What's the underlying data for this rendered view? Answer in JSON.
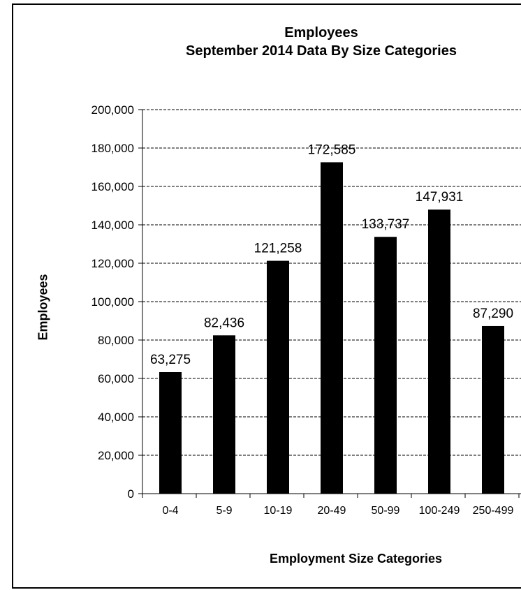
{
  "chart_data": {
    "type": "bar",
    "title": "Employees",
    "subtitle": "September 2014 Data By Size Categories",
    "xlabel": "Employment Size Categories",
    "ylabel": "Employees",
    "categories": [
      "0-4",
      "5-9",
      "10-19",
      "20-49",
      "50-99",
      "100-249",
      "250-499"
    ],
    "values": [
      63275,
      82436,
      121258,
      172585,
      133737,
      147931,
      87290
    ],
    "data_labels": [
      "63,275",
      "82,436",
      "121,258",
      "172,585",
      "133,737",
      "147,931",
      "87,290"
    ],
    "ylim": [
      0,
      200000
    ],
    "yticks": [
      0,
      20000,
      40000,
      60000,
      80000,
      100000,
      120000,
      140000,
      160000,
      180000,
      200000
    ],
    "ytick_labels": [
      "0",
      "20,000",
      "40,000",
      "60,000",
      "80,000",
      "100,000",
      "120,000",
      "140,000",
      "160,000",
      "180,000",
      "200,000"
    ],
    "grid": "dashed-horizontal",
    "bar_color": "#000000"
  }
}
